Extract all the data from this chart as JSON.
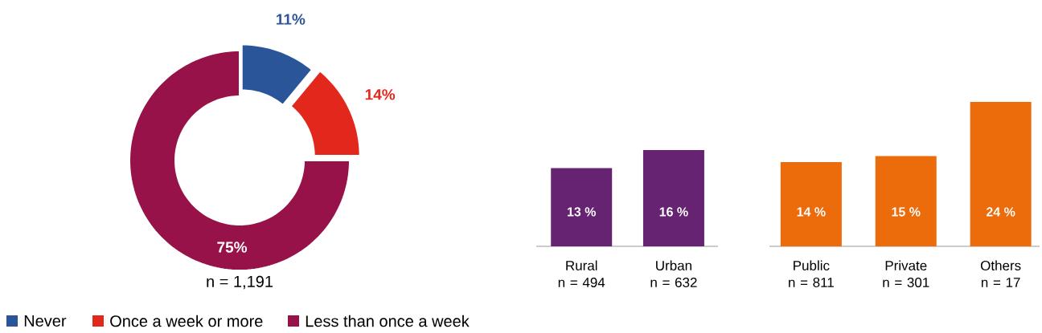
{
  "chart_data": [
    {
      "type": "donut",
      "categories": [
        "Never",
        "Once a week or more",
        "Less than once a week"
      ],
      "values": [
        11,
        14,
        75
      ],
      "colors": [
        "#2a5699",
        "#e2271d",
        "#961249"
      ],
      "value_labels": [
        "11%",
        "14%",
        "75%"
      ],
      "legend": "bottom",
      "annotations": [
        "n = 1,191"
      ]
    },
    {
      "type": "bar",
      "categories": [
        "Rural n = 494",
        "Urban n = 632"
      ],
      "values": [
        13,
        16
      ],
      "color": "#662371",
      "value_labels": [
        "13 %",
        "16 %"
      ]
    },
    {
      "type": "bar",
      "categories": [
        "Public n = 811",
        "Private n = 301",
        "Others n = 17"
      ],
      "values": [
        14,
        15,
        24
      ],
      "color": "#ec6b0a",
      "value_labels": [
        "14 %",
        "15 %",
        "24 %"
      ]
    }
  ]
}
